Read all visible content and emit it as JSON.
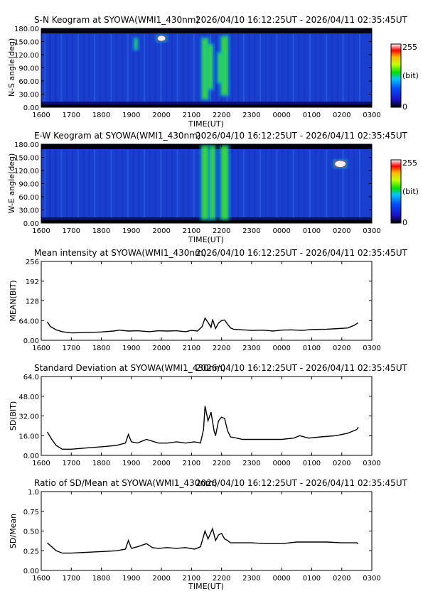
{
  "header": {
    "station_range": "2026/04/10 16:12:25UT - 2026/04/11 02:35:45UT"
  },
  "x_axis": {
    "label": "TIME(UT)",
    "ticks": [
      "1600",
      "1700",
      "1800",
      "1900",
      "2000",
      "2100",
      "2200",
      "2300",
      "0000",
      "0100",
      "0200",
      "0300"
    ]
  },
  "keogram_sn": {
    "title": "S-N Keogram at SYOWA(WMI1_430nm)",
    "ylabel": "N-S angle(deg)",
    "yticks": [
      "0.00",
      "30.00",
      "60.00",
      "90.00",
      "120.00",
      "150.00",
      "180.00"
    ],
    "colorbar": {
      "max_label": "255",
      "unit_label": "(bit)",
      "min_label": "0"
    }
  },
  "keogram_ew": {
    "title": "E-W Keogram at SYOWA(WMI1_430nm)",
    "ylabel": "W-E angle(deg)",
    "yticks": [
      "0.00",
      "30.00",
      "60.00",
      "90.00",
      "120.00",
      "150.00",
      "180.00"
    ],
    "colorbar": {
      "max_label": "255",
      "unit_label": "(bit)",
      "min_label": "0"
    }
  },
  "chart_data": [
    {
      "type": "line",
      "title": "Mean intensity at SYOWA(WMI1_430nm)",
      "xlabel": "",
      "ylabel": "MEAN(BIT)",
      "x_unit": "hours since 16:00 UT",
      "ylim": [
        0,
        256
      ],
      "yticks": [
        "0.00",
        "64.00",
        "128",
        "192",
        "256"
      ],
      "series": [
        {
          "x": [
            0.2,
            0.3,
            0.5,
            0.7,
            1.0,
            1.5,
            2.0,
            2.4,
            2.6,
            2.9,
            3.2,
            3.6,
            3.9,
            4.2,
            4.5,
            4.8,
            5.0,
            5.2,
            5.35,
            5.45,
            5.55,
            5.65,
            5.7,
            5.8,
            5.9,
            6.0,
            6.1,
            6.2,
            6.3,
            6.4,
            6.5,
            6.7,
            7.0,
            7.4,
            7.7,
            8.0,
            8.3,
            8.7,
            9.0,
            9.5,
            9.9,
            10.2,
            10.4,
            10.55
          ],
          "y": [
            60,
            45,
            34,
            28,
            24,
            25,
            27,
            30,
            33,
            30,
            31,
            28,
            31,
            30,
            31,
            28,
            32,
            30,
            44,
            72,
            58,
            42,
            68,
            38,
            56,
            64,
            66,
            52,
            40,
            36,
            35,
            34,
            32,
            33,
            30,
            33,
            34,
            32,
            35,
            36,
            38,
            40,
            48,
            57
          ]
        }
      ]
    },
    {
      "type": "line",
      "title": "Standard Deviation at SYOWA(WMI1_430nm)",
      "xlabel": "",
      "ylabel": "SD(BIT)",
      "x_unit": "hours since 16:00 UT",
      "ylim": [
        0,
        64
      ],
      "yticks": [
        "0.00",
        "16.00",
        "32.00",
        "48.00",
        "64.0"
      ],
      "series": [
        {
          "x": [
            0.2,
            0.35,
            0.5,
            0.7,
            1.0,
            1.5,
            2.0,
            2.5,
            2.8,
            2.9,
            3.0,
            3.2,
            3.5,
            3.9,
            4.2,
            4.5,
            4.8,
            5.1,
            5.3,
            5.4,
            5.45,
            5.55,
            5.65,
            5.75,
            5.8,
            5.9,
            6.0,
            6.1,
            6.2,
            6.3,
            6.5,
            6.7,
            7.0,
            7.4,
            8.0,
            8.4,
            8.6,
            8.9,
            9.3,
            9.8,
            10.2,
            10.5,
            10.55
          ],
          "y": [
            19,
            13,
            8,
            5,
            5,
            6,
            7,
            8,
            10,
            17,
            11,
            10,
            13,
            10,
            10,
            11,
            10,
            11,
            10,
            21,
            40,
            28,
            35,
            20,
            16,
            28,
            31,
            30,
            20,
            15,
            14,
            13,
            13,
            13,
            13,
            14,
            16,
            14,
            15,
            16,
            18,
            21,
            23
          ]
        }
      ]
    },
    {
      "type": "line",
      "title": "Ratio of SD/Mean at SYOWA(WMI1_430nm)",
      "xlabel": "TIME(UT)",
      "ylabel": "SD/Mean",
      "x_unit": "hours since 16:00 UT",
      "ylim": [
        0,
        1.0
      ],
      "yticks": [
        "0.00",
        "0.25",
        "0.50",
        "0.75",
        "1.0"
      ],
      "series": [
        {
          "x": [
            0.2,
            0.35,
            0.5,
            0.7,
            1.0,
            1.5,
            2.0,
            2.5,
            2.8,
            2.9,
            3.0,
            3.2,
            3.5,
            3.7,
            3.9,
            4.2,
            4.5,
            4.8,
            5.1,
            5.3,
            5.45,
            5.55,
            5.7,
            5.8,
            5.9,
            6.0,
            6.1,
            6.2,
            6.3,
            6.5,
            7.0,
            7.5,
            8.0,
            8.5,
            9.0,
            9.5,
            10.0,
            10.5,
            10.55
          ],
          "y": [
            0.35,
            0.3,
            0.25,
            0.22,
            0.22,
            0.23,
            0.24,
            0.25,
            0.27,
            0.38,
            0.28,
            0.3,
            0.34,
            0.29,
            0.28,
            0.29,
            0.28,
            0.29,
            0.27,
            0.3,
            0.5,
            0.4,
            0.53,
            0.38,
            0.45,
            0.47,
            0.4,
            0.38,
            0.35,
            0.35,
            0.35,
            0.34,
            0.34,
            0.36,
            0.36,
            0.36,
            0.35,
            0.35,
            0.34
          ]
        }
      ]
    }
  ],
  "keogram_features": {
    "x_unit": "hours since 16:00 UT",
    "sn_arcs": [
      {
        "x": 5.45,
        "w": 0.18,
        "y0": 20,
        "y1": 165,
        "strength": 0.9
      },
      {
        "x": 5.62,
        "w": 0.15,
        "y0": 45,
        "y1": 150,
        "strength": 0.7
      },
      {
        "x": 6.1,
        "w": 0.2,
        "y0": 30,
        "y1": 170,
        "strength": 0.85
      },
      {
        "x": 5.95,
        "w": 0.12,
        "y0": 60,
        "y1": 130,
        "strength": 0.6
      },
      {
        "x": 3.15,
        "w": 0.08,
        "y0": 140,
        "y1": 165,
        "strength": 0.4
      },
      {
        "x": 4.0,
        "w": 0.25,
        "y0": 160,
        "y1": 172,
        "strength": 1.0
      }
    ],
    "ew_arcs": [
      {
        "x": 5.45,
        "w": 0.2,
        "y0": 10,
        "y1": 185,
        "strength": 0.95
      },
      {
        "x": 5.7,
        "w": 0.15,
        "y0": 10,
        "y1": 185,
        "strength": 0.85
      },
      {
        "x": 6.1,
        "w": 0.22,
        "y0": 10,
        "y1": 185,
        "strength": 0.8
      },
      {
        "x": 9.95,
        "w": 0.35,
        "y0": 135,
        "y1": 150,
        "strength": 1.0
      }
    ]
  }
}
